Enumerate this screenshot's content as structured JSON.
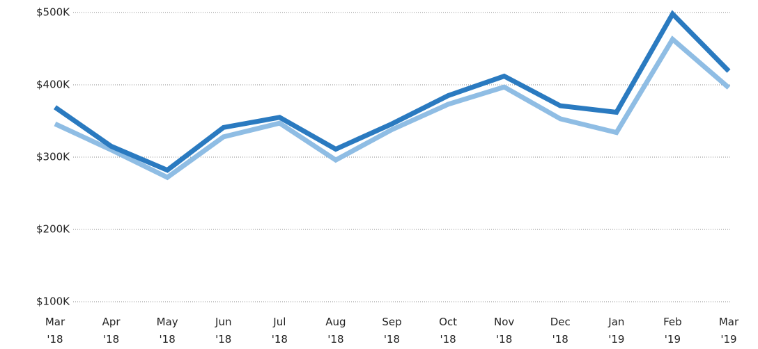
{
  "chart_data": {
    "type": "line",
    "categories": [
      "Mar '18",
      "Apr '18",
      "May '18",
      "Jun '18",
      "Jul '18",
      "Aug '18",
      "Sep '18",
      "Oct '18",
      "Nov '18",
      "Dec '18",
      "Jan '19",
      "Feb '19",
      "Mar '19"
    ],
    "series": [
      {
        "color": "#8fbde4",
        "values": [
          346000,
          310000,
          272000,
          328000,
          347000,
          296000,
          338000,
          373000,
          397000,
          353000,
          334000,
          463000,
          396000
        ]
      },
      {
        "color": "#2a7ac0",
        "values": [
          369000,
          315000,
          282000,
          341000,
          355000,
          311000,
          346000,
          385000,
          412000,
          371000,
          362000,
          498000,
          419000
        ]
      }
    ],
    "ylim": [
      100000,
      500000
    ],
    "yticks": [
      {
        "value": 100000,
        "label": "$100K"
      },
      {
        "value": 200000,
        "label": "$200K"
      },
      {
        "value": 300000,
        "label": "$300K"
      },
      {
        "value": 400000,
        "label": "$400K"
      },
      {
        "value": 500000,
        "label": "$500K"
      }
    ],
    "grid": true
  }
}
